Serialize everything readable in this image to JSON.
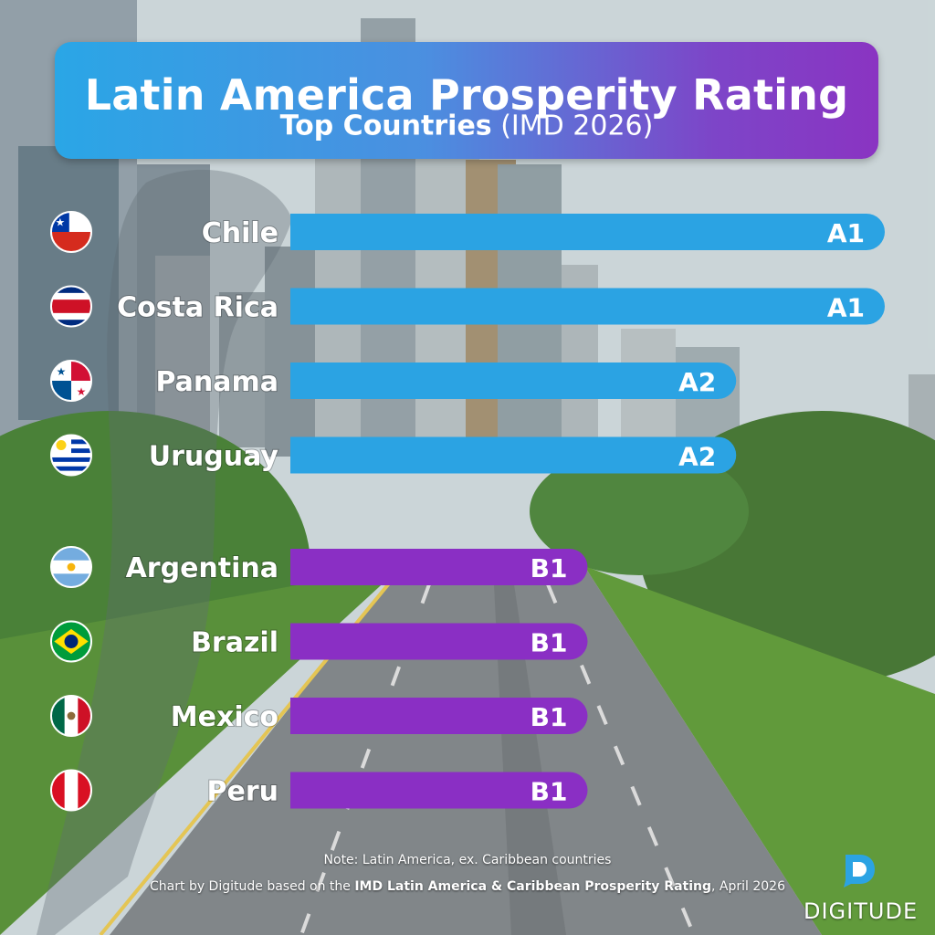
{
  "header": {
    "title": "Latin America Prosperity Rating",
    "subtitle_bold": "Top Countries",
    "subtitle_rest": " (IMD 2026)"
  },
  "footer": {
    "note": "Note: Latin America, ex. Caribbean countries",
    "credit_prefix": "Chart by Digitude based on the ",
    "credit_bold": "IMD Latin America & Caribbean Prosperity Rating",
    "credit_suffix": ", April 2026",
    "logo_text": "DIGITUDE"
  },
  "colors": {
    "tier_a": "#2ba3e3",
    "tier_b": "#8a2fc4",
    "label": "#ffffff"
  },
  "chart_data": {
    "type": "bar",
    "orientation": "horizontal",
    "title": "Latin America Prosperity Rating",
    "subtitle": "Top Countries (IMD 2026)",
    "categories": [
      "Chile",
      "Costa Rica",
      "Panama",
      "Uruguay",
      "Argentina",
      "Brazil",
      "Mexico",
      "Peru"
    ],
    "ratings": [
      "A1",
      "A1",
      "A2",
      "A2",
      "B1",
      "B1",
      "B1",
      "B1"
    ],
    "values": [
      4,
      4,
      3,
      3,
      2,
      2,
      2,
      2
    ],
    "flags": [
      "chile-flag",
      "costa-rica-flag",
      "panama-flag",
      "uruguay-flag",
      "argentina-flag",
      "brazil-flag",
      "mexico-flag",
      "peru-flag"
    ],
    "xlim": [
      0,
      4
    ],
    "grid": false,
    "legend": "none"
  }
}
